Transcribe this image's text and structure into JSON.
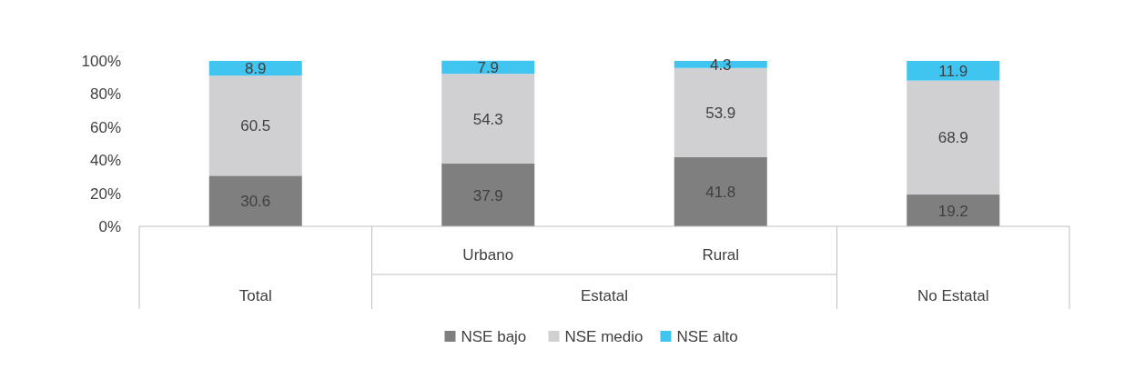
{
  "chart_data": {
    "type": "bar",
    "stacked": true,
    "categories": [
      "Total",
      "Urbano",
      "Rural",
      "No Estatal"
    ],
    "series": [
      {
        "name": "NSE bajo",
        "color": "#7f7f80",
        "values": [
          30.6,
          37.9,
          41.8,
          19.2
        ]
      },
      {
        "name": "NSE medio",
        "color": "#d0d0d2",
        "values": [
          60.5,
          54.3,
          53.9,
          68.9
        ]
      },
      {
        "name": "NSE alto",
        "color": "#40c4f0",
        "values": [
          8.9,
          7.9,
          4.3,
          11.9
        ]
      }
    ],
    "ylim": [
      0,
      100
    ],
    "yticks": [
      {
        "value": 0,
        "label": "0%"
      },
      {
        "value": 20,
        "label": "20%"
      },
      {
        "value": 40,
        "label": "40%"
      },
      {
        "value": 60,
        "label": "60%"
      },
      {
        "value": 80,
        "label": "80%"
      },
      {
        "value": 100,
        "label": "100%"
      }
    ],
    "annotations": [
      "Estatal"
    ],
    "data_labels": true,
    "legend": "bottom",
    "grid": false
  }
}
